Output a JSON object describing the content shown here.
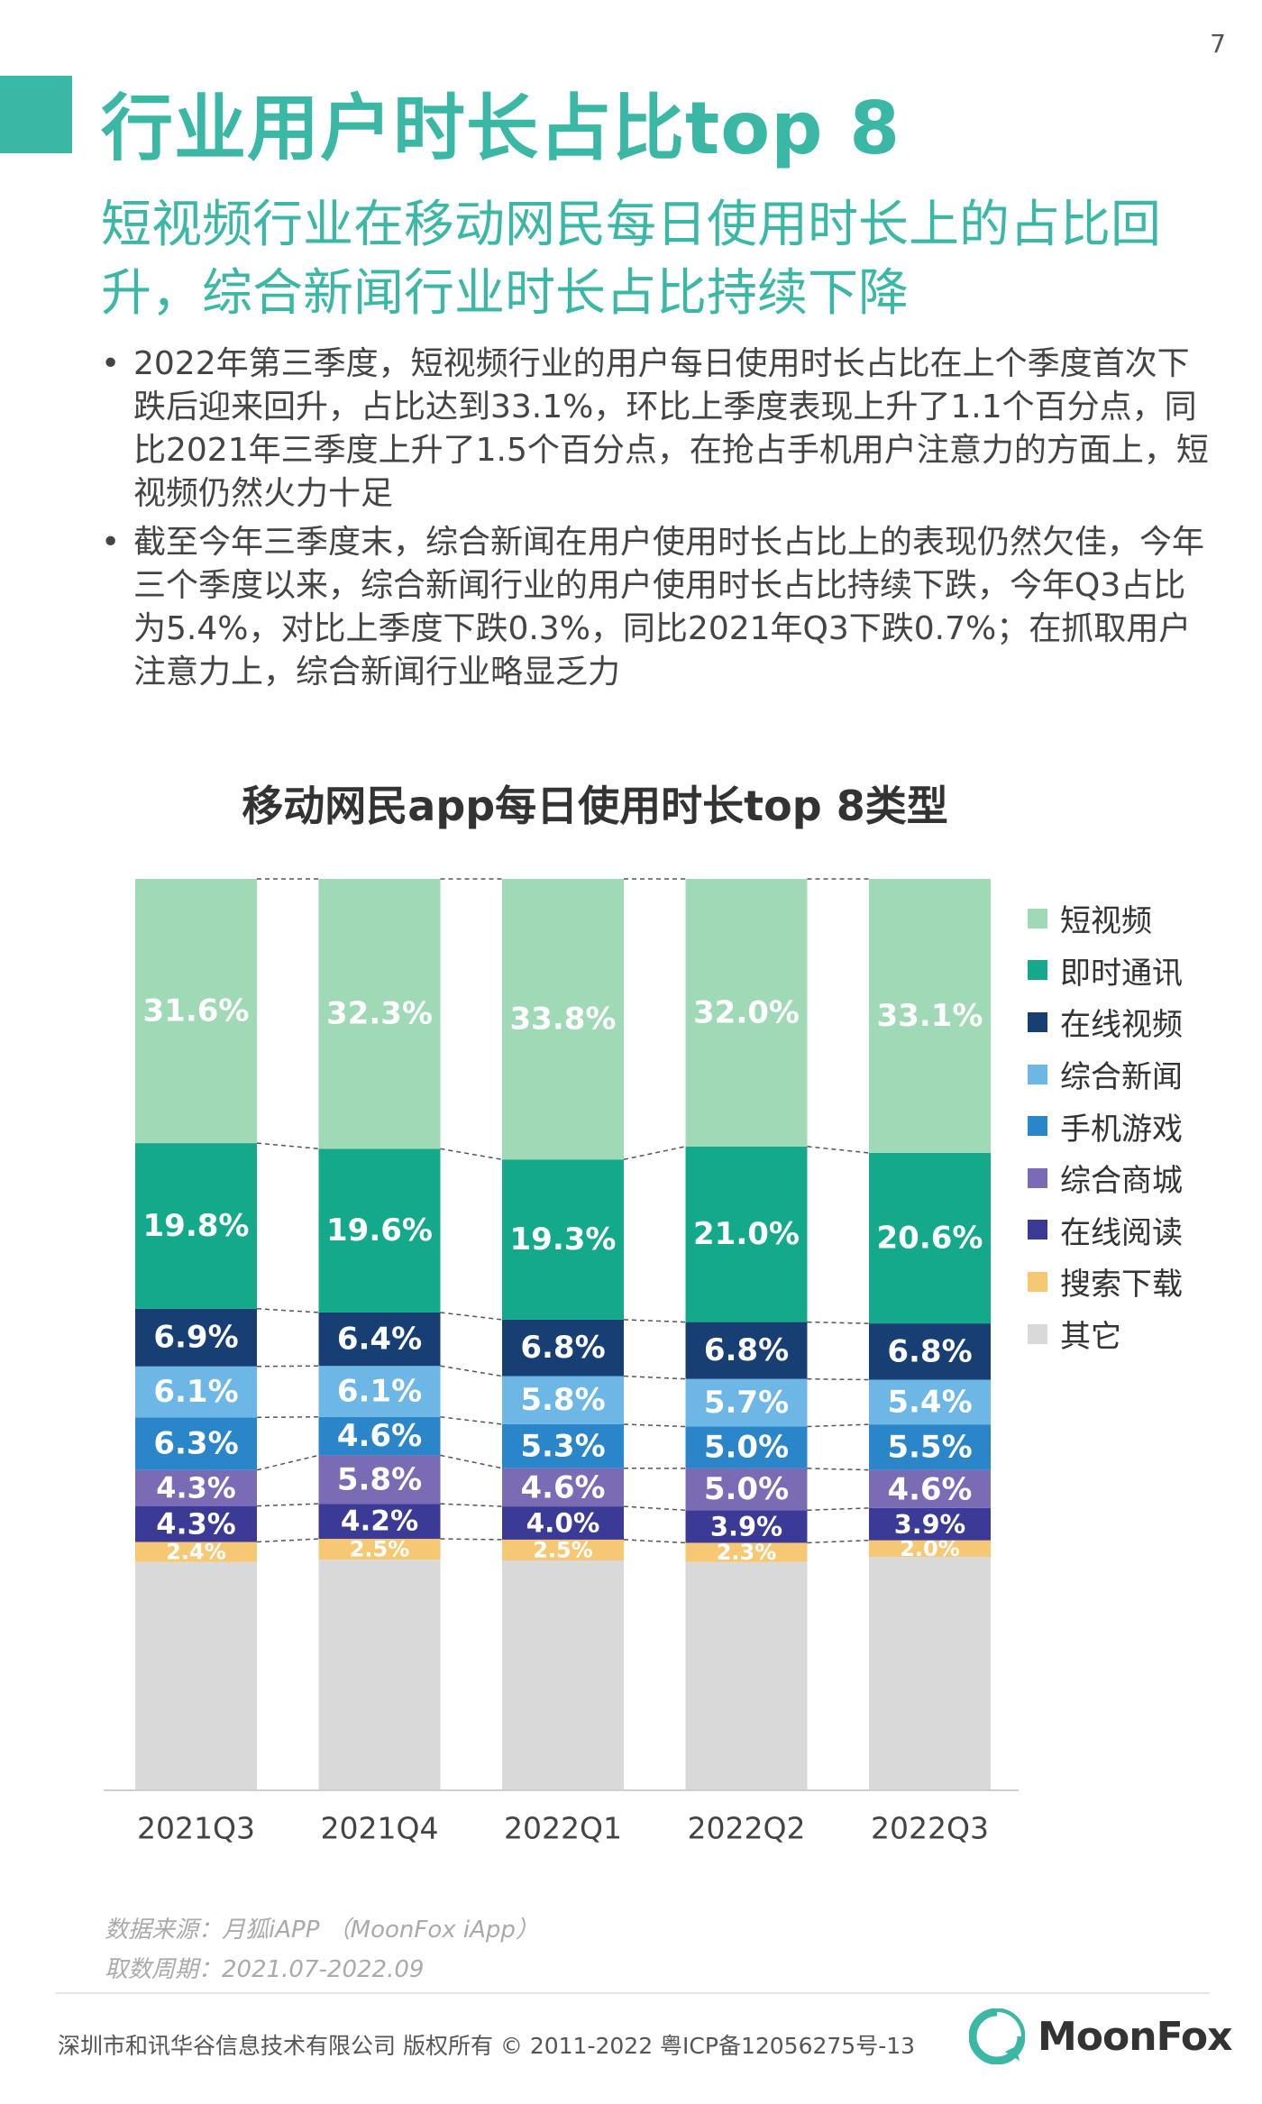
{
  "page_number": "7",
  "title": "行业用户时长占比top 8",
  "subtitle": "短视频行业在移动网民每日使用时长上的占比回升，综合新闻行业时长占比持续下降",
  "bullets": [
    "2022年第三季度，短视频行业的用户每日使用时长占比在上个季度首次下跌后迎来回升，占比达到33.1%，环比上季度表现上升了1.1个百分点，同比2021年三季度上升了1.5个百分点，在抢占手机用户注意力的方面上，短视频仍然火力十足",
    "截至今年三季度末，综合新闻在用户使用时长占比上的表现仍然欠佳，今年三个季度以来，综合新闻行业的用户使用时长占比持续下跌，今年Q3占比为5.4%，对比上季度下跌0.3%，同比2021年Q3下跌0.7%；在抓取用户注意力上，综合新闻行业略显乏力"
  ],
  "bullet_marker": "•",
  "chart_data": {
    "type": "bar",
    "stacked": true,
    "percent": true,
    "title": "移动网民app每日使用时长top 8类型",
    "categories": [
      "2021Q3",
      "2021Q4",
      "2022Q1",
      "2022Q2",
      "2022Q3"
    ],
    "series": [
      {
        "name": "其它",
        "color": "#d9d9d9",
        "values": [
          27.3,
          27.6,
          27.7,
          27.3,
          28.2
        ],
        "labeled": false
      },
      {
        "name": "搜索下载",
        "color": "#f7c873",
        "values": [
          2.4,
          2.5,
          2.5,
          2.3,
          2.0
        ],
        "labeled": true
      },
      {
        "name": "在线阅读",
        "color": "#3b3a96",
        "values": [
          4.3,
          4.2,
          4.0,
          3.9,
          3.9
        ],
        "labeled": true
      },
      {
        "name": "综合商城",
        "color": "#7b6bb5",
        "values": [
          4.3,
          5.8,
          4.6,
          5.0,
          4.6
        ],
        "labeled": true
      },
      {
        "name": "手机游戏",
        "color": "#2a86c8",
        "values": [
          6.3,
          4.6,
          5.3,
          5.0,
          5.5
        ],
        "labeled": true
      },
      {
        "name": "综合新闻",
        "color": "#6cb7e6",
        "values": [
          6.1,
          6.1,
          5.8,
          5.7,
          5.4
        ],
        "labeled": true
      },
      {
        "name": "在线视频",
        "color": "#173f73",
        "values": [
          6.9,
          6.4,
          6.8,
          6.8,
          6.8
        ],
        "labeled": true
      },
      {
        "name": "即时通讯",
        "color": "#15a98b",
        "values": [
          19.8,
          19.6,
          19.3,
          21.0,
          20.6
        ],
        "labeled": true
      },
      {
        "name": "短视频",
        "color": "#9fd9b6",
        "values": [
          31.6,
          32.3,
          33.8,
          32.0,
          33.1
        ],
        "labeled": true
      }
    ],
    "legend_order": [
      "短视频",
      "即时通讯",
      "在线视频",
      "综合新闻",
      "手机游戏",
      "综合商城",
      "在线阅读",
      "搜索下载",
      "其它"
    ],
    "legend_position": "right",
    "connector_lines": "dashed",
    "grid": false
  },
  "source": {
    "line1": "数据来源：月狐iAPP （MoonFox iApp）",
    "line2": "取数周期：2021.07-2022.09"
  },
  "footer": {
    "copyright": "深圳市和讯华谷信息技术有限公司 版权所有 © 2011-2022 粤ICP备12056275号-13",
    "brand": "MoonFox",
    "brand_color": "#3bb8a5"
  }
}
